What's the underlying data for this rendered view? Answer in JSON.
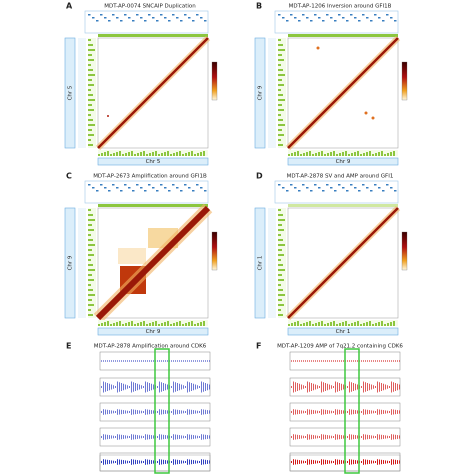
{
  "panels": [
    {
      "letter": "A",
      "title": "MDT-AP-0074 SNCAIP Duplication",
      "x_label": "Chr 5",
      "y_label": "Chr 5"
    },
    {
      "letter": "B",
      "title": "MDT-AP-1206 Inversion around GFI1B",
      "x_label": "Chr 9",
      "y_label": "Chr 9"
    },
    {
      "letter": "C",
      "title": "MDT-AP-2673 Amplification around GFI1B",
      "x_label": "Chr 9",
      "y_label": "Chr 9"
    },
    {
      "letter": "D",
      "title": "MDT-AP-2878 SV and AMP around GFI1",
      "x_label": "Chr 1",
      "y_label": "Chr 1"
    },
    {
      "letter": "E",
      "title": "MDT-AP-2878 Amplification around CDK6"
    },
    {
      "letter": "F",
      "title": "MDT-AP-1209 AMP of 7q21.2 containing CDK6"
    }
  ]
}
